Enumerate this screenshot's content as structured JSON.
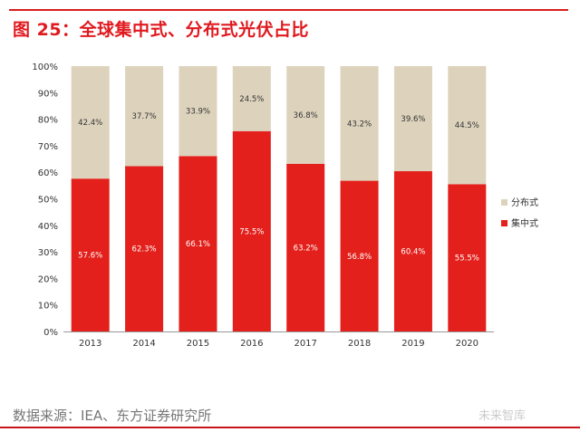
{
  "title": "图 25：全球集中式、分布式光伏占比",
  "source": "数据来源：IEA、东方证券研究所",
  "watermark": "未来智库",
  "chart_data": {
    "type": "bar",
    "stacked": true,
    "categories": [
      "2013",
      "2014",
      "2015",
      "2016",
      "2017",
      "2018",
      "2019",
      "2020"
    ],
    "series": [
      {
        "name": "集中式",
        "color": "#e3201b",
        "values": [
          57.6,
          62.3,
          66.1,
          75.5,
          63.2,
          56.8,
          60.4,
          55.5
        ],
        "labels": [
          "57.6%",
          "62.3%",
          "66.1%",
          "75.5%",
          "63.2%",
          "56.8%",
          "60.4%",
          "55.5%"
        ]
      },
      {
        "name": "分布式",
        "color": "#ddd3bd",
        "values": [
          42.4,
          37.7,
          33.9,
          24.5,
          36.8,
          43.2,
          39.6,
          44.5
        ],
        "labels": [
          "42.4%",
          "37.7%",
          "33.9%",
          "24.5%",
          "36.8%",
          "43.2%",
          "39.6%",
          "44.5%"
        ]
      }
    ],
    "yticks": [
      "0%",
      "10%",
      "20%",
      "30%",
      "40%",
      "50%",
      "60%",
      "70%",
      "80%",
      "90%",
      "100%"
    ],
    "ylim": [
      0,
      100
    ],
    "legend": "right",
    "grid": false
  }
}
